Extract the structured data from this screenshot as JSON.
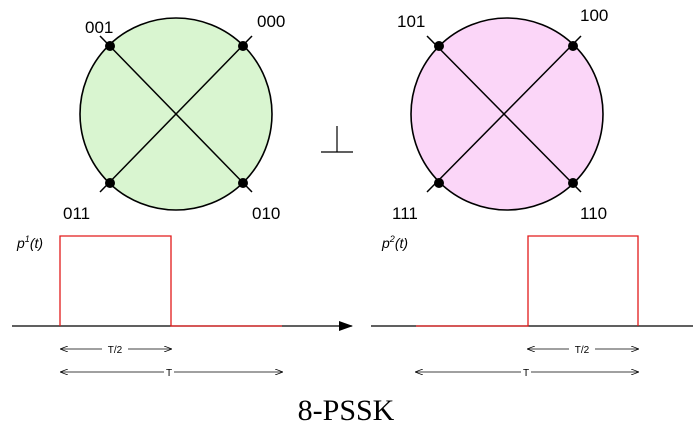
{
  "left_constellation": {
    "fill": "#d9f5d0",
    "labels": [
      "001",
      "000",
      "011",
      "010"
    ]
  },
  "right_constellation": {
    "fill": "#fbd6f8",
    "labels": [
      "101",
      "100",
      "111",
      "110"
    ]
  },
  "orthogonal_symbol": "⊥",
  "left_pulse": {
    "name_base": "p",
    "name_sup": "1",
    "name_arg": "(t)",
    "half_label": "T/2",
    "full_label": "T",
    "color": "#e21a1a"
  },
  "right_pulse": {
    "name_base": "p",
    "name_sup": "2",
    "name_arg": "(t)",
    "half_label": "T/2",
    "full_label": "T",
    "color": "#e21a1a"
  },
  "title": "8-PSSK"
}
